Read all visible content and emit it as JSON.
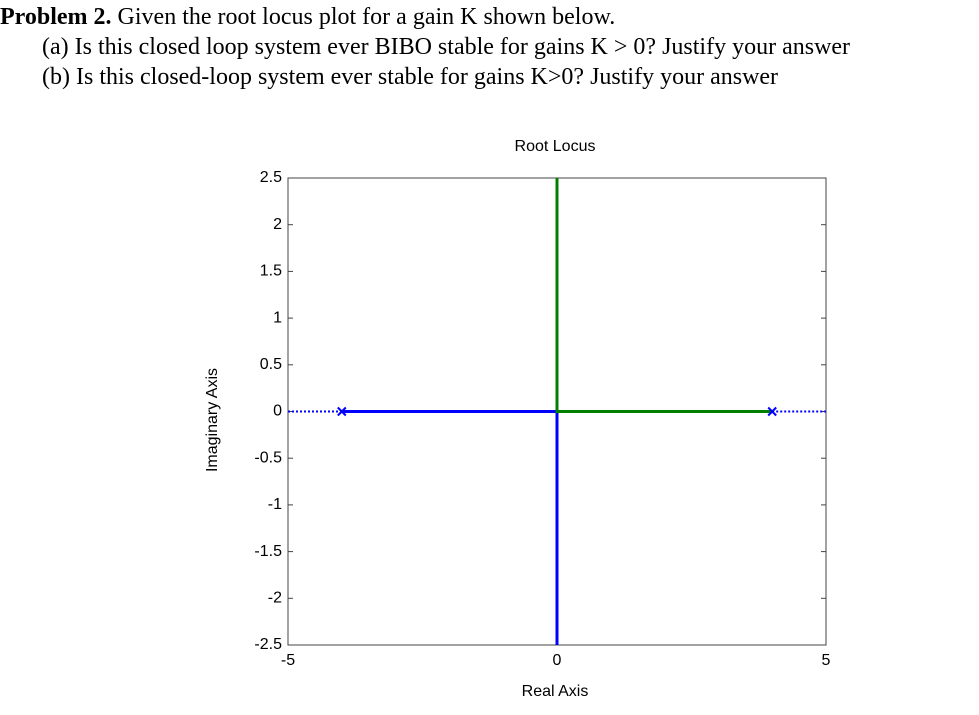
{
  "problem": {
    "label": "Problem 2.",
    "intro": "Given the root locus plot for a gain K shown below.",
    "parts": [
      "(a) Is this closed loop system ever BIBO stable for gains K > 0? Justify your answer",
      "(b) Is this closed-loop system ever stable for gains K>0? Justify your answer"
    ]
  },
  "chart_data": {
    "type": "line",
    "title": "Root Locus",
    "x_label": "Real Axis",
    "y_label": "Imaginary Axis",
    "xlim": [
      -5,
      5
    ],
    "ylim": [
      -2.5,
      2.5
    ],
    "xticks": [
      -5,
      0,
      5
    ],
    "yticks": [
      -2.5,
      -2,
      -1.5,
      -1,
      -0.5,
      0,
      0.5,
      1,
      1.5,
      2,
      2.5
    ],
    "series": [
      {
        "color": "#0000ff",
        "x": [
          -4,
          0,
          0
        ],
        "values": [
          0,
          0,
          -2.5
        ]
      },
      {
        "color": "#008000",
        "x": [
          4,
          0,
          0
        ],
        "values": [
          0,
          0,
          2.5
        ]
      },
      {
        "color": "#0000ff",
        "style": "dotted",
        "x": [
          -5,
          -4
        ],
        "values": [
          0,
          0
        ]
      },
      {
        "color": "#0000ff",
        "style": "dotted",
        "x": [
          4,
          5
        ],
        "values": [
          0,
          0
        ]
      }
    ],
    "poles": {
      "color": "#0000ff",
      "x": [
        -4,
        4
      ],
      "values": [
        0,
        0
      ]
    }
  }
}
